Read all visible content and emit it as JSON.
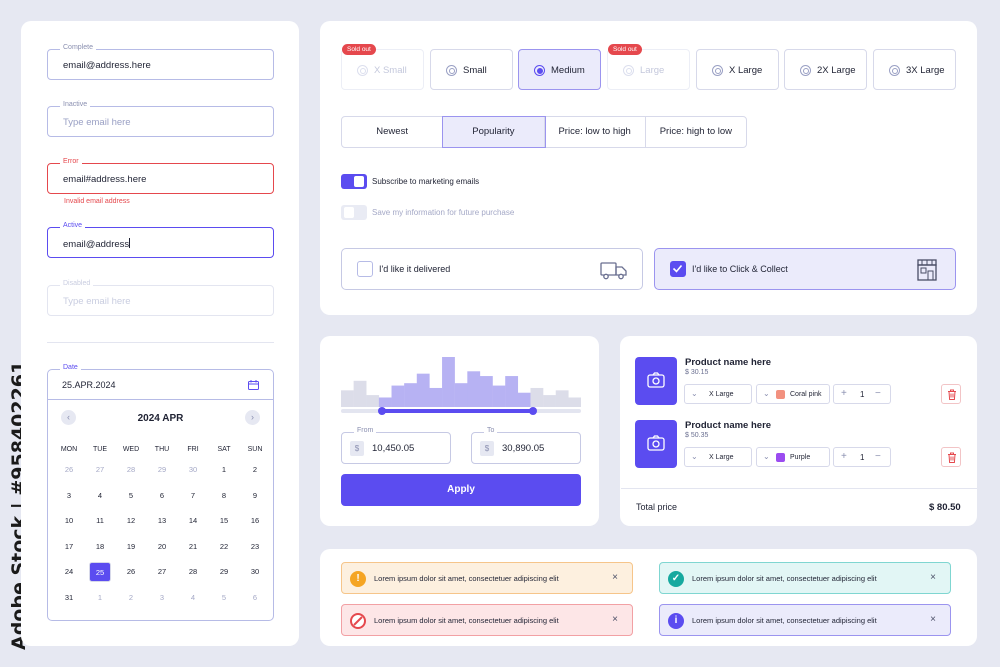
{
  "watermark": "Adobe Stock | #958402261",
  "form_fields": [
    {
      "label": "Complete",
      "value": "email@address.here",
      "placeholder": ""
    },
    {
      "label": "Inactive",
      "value": "",
      "placeholder": "Type email here"
    },
    {
      "label": "Error",
      "value": "email#address.here",
      "placeholder": "",
      "error_message": "Invalid email address"
    },
    {
      "label": "Active",
      "value": "email@address",
      "placeholder": ""
    },
    {
      "label": "Disabled",
      "value": "",
      "placeholder": "Type email here"
    }
  ],
  "calendar": {
    "label": "Date",
    "value": "25.APR.2024",
    "month_title": "2024 APR",
    "weekdays": [
      "MON",
      "TUE",
      "WED",
      "THU",
      "FRI",
      "SAT",
      "SUN"
    ],
    "weeks": [
      [
        "26",
        "27",
        "28",
        "29",
        "30",
        "1",
        "2"
      ],
      [
        "3",
        "4",
        "5",
        "6",
        "7",
        "8",
        "9"
      ],
      [
        "10",
        "11",
        "12",
        "13",
        "14",
        "15",
        "16"
      ],
      [
        "17",
        "18",
        "19",
        "20",
        "21",
        "22",
        "23"
      ],
      [
        "24",
        "25",
        "26",
        "27",
        "28",
        "29",
        "30"
      ],
      [
        "31",
        "1",
        "2",
        "3",
        "4",
        "5",
        "6"
      ]
    ],
    "selected_day": "25"
  },
  "sizes": [
    {
      "label": "X Small",
      "state": "sold_out",
      "badge": "Sold out"
    },
    {
      "label": "Small",
      "state": "default",
      "badge": ""
    },
    {
      "label": "Medium",
      "state": "selected",
      "badge": ""
    },
    {
      "label": "Large",
      "state": "sold_out",
      "badge": "Sold out"
    },
    {
      "label": "X Large",
      "state": "default",
      "badge": ""
    },
    {
      "label": "2X Large",
      "state": "default",
      "badge": ""
    },
    {
      "label": "3X Large",
      "state": "default",
      "badge": ""
    }
  ],
  "sort_options": [
    "Newest",
    "Popularity",
    "Price: low to high",
    "Price: high to low"
  ],
  "sort_selected": "Popularity",
  "toggles": [
    {
      "label": "Subscribe to marketing emails",
      "on": true
    },
    {
      "label": "Save my information for future purchase",
      "on": false
    }
  ],
  "delivery": [
    {
      "label": "I'd like it delivered",
      "checked": false,
      "icon": "truck-icon"
    },
    {
      "label": "I'd like to Click & Collect",
      "checked": true,
      "icon": "store-icon"
    }
  ],
  "price_filter": {
    "from_label": "From",
    "from_value": "10,450.05",
    "to_label": "To",
    "to_value": "30,890.05",
    "currency": "$",
    "apply_label": "Apply",
    "histogram": [
      14,
      22,
      10,
      8,
      18,
      20,
      28,
      16,
      42,
      20,
      30,
      26,
      18,
      26,
      12,
      16,
      10,
      14,
      8
    ],
    "range_fraction": [
      0.17,
      0.8
    ]
  },
  "cart": {
    "items": [
      {
        "name": "Product name here",
        "price": "$ 30.15",
        "size": "X Large",
        "color": "Coral pink",
        "color_hex": "#f2917f",
        "qty": "1"
      },
      {
        "name": "Product name here",
        "price": "$ 50.35",
        "size": "X Large",
        "color": "Purple",
        "color_hex": "#9b4cf0",
        "qty": "1"
      }
    ],
    "total_label": "Total price",
    "total_value": "$ 80.50"
  },
  "alerts": [
    {
      "type": "warning",
      "text": "Lorem ipsum dolor sit amet, consectetuer adipiscing elit",
      "icon": "!"
    },
    {
      "type": "success",
      "text": "Lorem ipsum dolor sit amet, consectetuer adipiscing elit",
      "icon": "✓"
    },
    {
      "type": "error",
      "text": "Lorem ipsum dolor sit amet, consectetuer adipiscing elit",
      "icon": "⊘"
    },
    {
      "type": "info",
      "text": "Lorem ipsum dolor sit amet, consectetuer adipiscing elit",
      "icon": "i"
    }
  ],
  "colors": {
    "accent": "#5b4cf0",
    "error": "#e5484d",
    "warning": "#f5a524",
    "success": "#17a99f",
    "background": "#e6e8f2"
  }
}
